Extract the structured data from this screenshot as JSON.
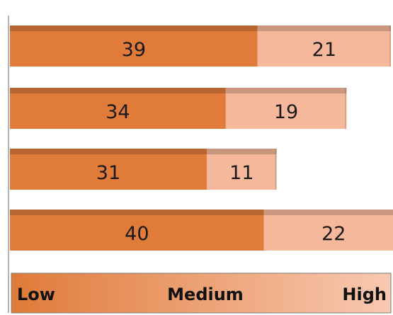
{
  "chart_data": {
    "type": "bar",
    "orientation": "horizontal",
    "stacked": true,
    "categories": [
      "",
      "",
      "",
      ""
    ],
    "series": [
      {
        "values": [
          39,
          34,
          31,
          40
        ]
      },
      {
        "values": [
          21,
          19,
          11,
          22
        ]
      }
    ],
    "series_colors": [
      "#e07b39",
      "#f6b89a"
    ],
    "xlim": [
      0,
      60
    ],
    "grid": false,
    "legend": {
      "placement": "bottom",
      "labels": [
        "Low",
        "Medium",
        "High"
      ],
      "gradient": [
        "#e07b39",
        "#f8c9b1"
      ]
    }
  }
}
